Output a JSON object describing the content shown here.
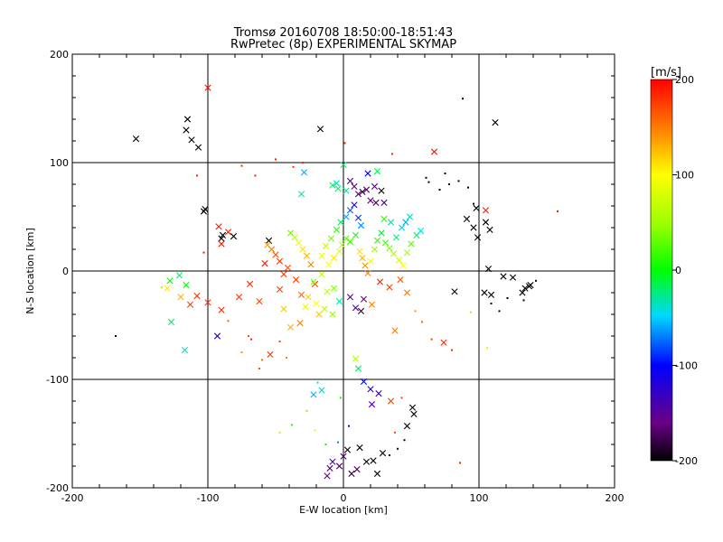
{
  "chart_data": {
    "type": "scatter",
    "title": "Tromsø 20160708 18:50:00-18:51:43",
    "subtitle": "RwPretec (8p) EXPERIMENTAL SKYMAP",
    "xlabel": "E-W location [km]",
    "ylabel": "N-S location [km]",
    "xlim": [
      -200,
      200
    ],
    "ylim": [
      -200,
      200
    ],
    "x_ticks": [
      "-200",
      "-100",
      "0",
      "100",
      "200"
    ],
    "y_ticks": [
      "-200",
      "-100",
      "0",
      "100",
      "200"
    ],
    "grid": true,
    "colorbar": {
      "label": "[m/s]",
      "range": [
        -200,
        200
      ],
      "ticks": [
        "-200",
        "-100",
        "0",
        "100",
        "200"
      ],
      "colormap": "rainbow (black→purple→blue→cyan→green→yellow→red)"
    },
    "markers": {
      "small": "dot",
      "large": "x"
    },
    "points": [
      [
        -153,
        122,
        -210,
        1
      ],
      [
        -115,
        140,
        -210,
        1
      ],
      [
        -116,
        130,
        -210,
        1
      ],
      [
        -112,
        121,
        -210,
        1
      ],
      [
        -107,
        114,
        -210,
        1
      ],
      [
        -100,
        169,
        195,
        1
      ],
      [
        -17,
        131,
        -210,
        1
      ],
      [
        112,
        137,
        -210,
        1
      ],
      [
        88,
        159,
        -200,
        0
      ],
      [
        -108,
        88,
        190,
        0
      ],
      [
        1,
        118,
        190,
        0
      ],
      [
        36,
        108,
        185,
        0
      ],
      [
        67,
        110,
        190,
        1
      ],
      [
        -75,
        97,
        190,
        0
      ],
      [
        -50,
        103,
        190,
        0
      ],
      [
        -65,
        88,
        190,
        0
      ],
      [
        -37,
        96,
        185,
        0
      ],
      [
        -30,
        100,
        185,
        0
      ],
      [
        0,
        98,
        -20,
        1
      ],
      [
        -8,
        79,
        -20,
        1
      ],
      [
        -4,
        76,
        -20,
        1
      ],
      [
        -5,
        81,
        -40,
        1
      ],
      [
        2,
        74,
        -30,
        1
      ],
      [
        5,
        83,
        -150,
        1
      ],
      [
        8,
        78,
        -160,
        1
      ],
      [
        11,
        71,
        -170,
        1
      ],
      [
        14,
        73,
        -180,
        1
      ],
      [
        17,
        75,
        -165,
        1
      ],
      [
        20,
        65,
        -160,
        1
      ],
      [
        24,
        63,
        -175,
        1
      ],
      [
        23,
        78,
        -155,
        1
      ],
      [
        28,
        74,
        -210,
        1
      ],
      [
        30,
        63,
        -140,
        1
      ],
      [
        18,
        90,
        -100,
        1
      ],
      [
        25,
        92,
        -20,
        1
      ],
      [
        -29,
        91,
        -60,
        1
      ],
      [
        -31,
        71,
        -30,
        1
      ],
      [
        61,
        86,
        -210,
        0
      ],
      [
        63,
        82,
        -210,
        0
      ],
      [
        71,
        75,
        -210,
        0
      ],
      [
        78,
        80,
        -210,
        0
      ],
      [
        75,
        90,
        -210,
        0
      ],
      [
        85,
        83,
        -210,
        0
      ],
      [
        92,
        77,
        -210,
        0
      ],
      [
        96,
        62,
        -210,
        0
      ],
      [
        98,
        58,
        -210,
        1
      ],
      [
        91,
        48,
        -210,
        1
      ],
      [
        105,
        45,
        -210,
        1
      ],
      [
        108,
        38,
        -210,
        1
      ],
      [
        96,
        40,
        -210,
        1
      ],
      [
        99,
        31,
        -210,
        1
      ],
      [
        105,
        56,
        190,
        1
      ],
      [
        107,
        2,
        -210,
        1
      ],
      [
        125,
        -6,
        -210,
        1
      ],
      [
        137,
        -14,
        -210,
        1
      ],
      [
        132,
        -20,
        -210,
        1
      ],
      [
        118,
        -5,
        -210,
        1
      ],
      [
        138,
        -13,
        -210,
        1
      ],
      [
        142,
        -9,
        -210,
        0
      ],
      [
        121,
        -25,
        -210,
        0
      ],
      [
        109,
        -30,
        -210,
        0
      ],
      [
        104,
        -20,
        -210,
        1
      ],
      [
        109,
        -22,
        -210,
        1
      ],
      [
        134,
        -16,
        -210,
        1
      ],
      [
        82,
        -19,
        -210,
        1
      ],
      [
        94,
        -38,
        120,
        0
      ],
      [
        106,
        -71,
        110,
        0
      ],
      [
        158,
        55,
        190,
        0
      ],
      [
        115,
        -37,
        -210,
        0
      ],
      [
        133,
        -27,
        -210,
        0
      ],
      [
        -102,
        57,
        -210,
        1
      ],
      [
        -103,
        55,
        -210,
        1
      ],
      [
        -90,
        30,
        -210,
        1
      ],
      [
        -89,
        33,
        -210,
        1
      ],
      [
        -81,
        32,
        -210,
        1
      ],
      [
        -55,
        28,
        -210,
        1
      ],
      [
        -92,
        41,
        190,
        1
      ],
      [
        -85,
        36,
        190,
        1
      ],
      [
        -90,
        25,
        190,
        1
      ],
      [
        -103,
        17,
        195,
        0
      ],
      [
        -121,
        -4,
        -20,
        1
      ],
      [
        -128,
        -9,
        0,
        1
      ],
      [
        -130,
        -16,
        110,
        1
      ],
      [
        -116,
        -13,
        0,
        1
      ],
      [
        -108,
        -23,
        180,
        1
      ],
      [
        -113,
        -31,
        175,
        1
      ],
      [
        -100,
        -29,
        180,
        1
      ],
      [
        -90,
        -36,
        185,
        1
      ],
      [
        -93,
        -60,
        -110,
        1
      ],
      [
        -117,
        -73,
        -40,
        1
      ],
      [
        -127,
        -47,
        -20,
        1
      ],
      [
        -168,
        -60,
        -210,
        0
      ],
      [
        -134,
        -15,
        60,
        0
      ],
      [
        -120,
        -24,
        130,
        1
      ],
      [
        -85,
        -46,
        160,
        0
      ],
      [
        -70,
        -60,
        170,
        0
      ],
      [
        -77,
        -24,
        180,
        1
      ],
      [
        -62,
        -28,
        170,
        1
      ],
      [
        -69,
        -12,
        185,
        1
      ],
      [
        -58,
        7,
        190,
        1
      ],
      [
        -47,
        -17,
        175,
        1
      ],
      [
        -44,
        -35,
        120,
        1
      ],
      [
        -39,
        -52,
        130,
        1
      ],
      [
        -32,
        -48,
        150,
        1
      ],
      [
        -28,
        -33,
        90,
        1
      ],
      [
        -21,
        -12,
        180,
        1
      ],
      [
        -18,
        -40,
        120,
        1
      ],
      [
        -12,
        -19,
        70,
        1
      ],
      [
        -7,
        -16,
        40,
        1
      ],
      [
        -3,
        -28,
        -30,
        1
      ],
      [
        5,
        -24,
        -150,
        1
      ],
      [
        9,
        -34,
        -140,
        1
      ],
      [
        13,
        -37,
        -180,
        1
      ],
      [
        15,
        -26,
        -160,
        1
      ],
      [
        21,
        -31,
        150,
        1
      ],
      [
        27,
        -10,
        180,
        1
      ],
      [
        34,
        -15,
        170,
        1
      ],
      [
        42,
        -8,
        165,
        1
      ],
      [
        47,
        -20,
        150,
        1
      ],
      [
        53,
        -37,
        140,
        0
      ],
      [
        38,
        -55,
        150,
        1
      ],
      [
        58,
        -47,
        160,
        0
      ],
      [
        65,
        -63,
        175,
        0
      ],
      [
        74,
        -66,
        185,
        1
      ],
      [
        80,
        -73,
        190,
        0
      ],
      [
        -42,
        -80,
        150,
        0
      ],
      [
        -47,
        -65,
        170,
        0
      ],
      [
        -54,
        -77,
        175,
        1
      ],
      [
        -60,
        -82,
        160,
        0
      ],
      [
        -68,
        -63,
        190,
        0
      ],
      [
        -75,
        -75,
        140,
        0
      ],
      [
        -62,
        -90,
        170,
        0
      ],
      [
        9,
        -81,
        60,
        1
      ],
      [
        11,
        -90,
        -20,
        1
      ],
      [
        15,
        -102,
        -100,
        1
      ],
      [
        20,
        -109,
        -120,
        1
      ],
      [
        26,
        -113,
        -130,
        1
      ],
      [
        21,
        -123,
        -140,
        1
      ],
      [
        35,
        -120,
        170,
        1
      ],
      [
        43,
        -117,
        175,
        0
      ],
      [
        51,
        -126,
        -210,
        1
      ],
      [
        47,
        -143,
        -210,
        1
      ],
      [
        52,
        -132,
        -210,
        1
      ],
      [
        38,
        -149,
        170,
        0
      ],
      [
        45,
        -156,
        -210,
        0
      ],
      [
        40,
        -164,
        -210,
        0
      ],
      [
        34,
        -170,
        -210,
        0
      ],
      [
        29,
        -168,
        -210,
        1
      ],
      [
        22,
        -175,
        -210,
        1
      ],
      [
        25,
        -187,
        -210,
        1
      ],
      [
        17,
        -176,
        -210,
        1
      ],
      [
        12,
        -163,
        -210,
        1
      ],
      [
        10,
        -183,
        -170,
        1
      ],
      [
        6,
        -187,
        -180,
        1
      ],
      [
        0,
        -171,
        -170,
        1
      ],
      [
        3,
        -165,
        -190,
        1
      ],
      [
        -3,
        -180,
        -170,
        1
      ],
      [
        -10,
        -182,
        -165,
        1
      ],
      [
        -12,
        -189,
        -160,
        1
      ],
      [
        -8,
        -176,
        -150,
        1
      ],
      [
        -22,
        -114,
        -60,
        1
      ],
      [
        -16,
        -110,
        -40,
        1
      ],
      [
        -27,
        -129,
        40,
        0
      ],
      [
        -38,
        -142,
        10,
        0
      ],
      [
        -47,
        -149,
        60,
        0
      ],
      [
        -21,
        -147,
        80,
        0
      ],
      [
        -13,
        -160,
        0,
        0
      ],
      [
        -4,
        -158,
        -70,
        0
      ],
      [
        86,
        -177,
        190,
        0
      ],
      [
        4,
        -143,
        -100,
        0
      ],
      [
        -19,
        -103,
        -50,
        0
      ],
      [
        -2,
        -117,
        10,
        0
      ],
      [
        -22,
        -10,
        40,
        1
      ],
      [
        -16,
        -3,
        70,
        1
      ],
      [
        -11,
        6,
        100,
        1
      ],
      [
        -7,
        12,
        110,
        1
      ],
      [
        -3,
        18,
        80,
        1
      ],
      [
        -1,
        24,
        60,
        1
      ],
      [
        2,
        30,
        30,
        1
      ],
      [
        5,
        27,
        20,
        1
      ],
      [
        9,
        33,
        10,
        1
      ],
      [
        12,
        18,
        110,
        1
      ],
      [
        14,
        12,
        130,
        1
      ],
      [
        16,
        5,
        140,
        1
      ],
      [
        18,
        -2,
        150,
        1
      ],
      [
        20,
        9,
        90,
        1
      ],
      [
        23,
        20,
        50,
        1
      ],
      [
        25,
        28,
        20,
        1
      ],
      [
        28,
        35,
        -10,
        1
      ],
      [
        31,
        26,
        20,
        1
      ],
      [
        34,
        21,
        40,
        1
      ],
      [
        37,
        16,
        60,
        1
      ],
      [
        41,
        10,
        80,
        1
      ],
      [
        44,
        5,
        100,
        1
      ],
      [
        47,
        17,
        60,
        1
      ],
      [
        50,
        25,
        30,
        1
      ],
      [
        54,
        33,
        -20,
        1
      ],
      [
        57,
        37,
        -40,
        1
      ],
      [
        39,
        31,
        -20,
        1
      ],
      [
        43,
        40,
        -50,
        1
      ],
      [
        46,
        45,
        -60,
        1
      ],
      [
        49,
        50,
        -40,
        1
      ],
      [
        35,
        45,
        -30,
        1
      ],
      [
        30,
        48,
        10,
        1
      ],
      [
        -24,
        6,
        150,
        1
      ],
      [
        -27,
        14,
        130,
        1
      ],
      [
        -30,
        20,
        110,
        1
      ],
      [
        -33,
        26,
        90,
        1
      ],
      [
        -36,
        31,
        70,
        1
      ],
      [
        -39,
        35,
        40,
        1
      ],
      [
        -41,
        3,
        170,
        1
      ],
      [
        -44,
        -3,
        175,
        1
      ],
      [
        -47,
        9,
        180,
        1
      ],
      [
        -50,
        15,
        165,
        1
      ],
      [
        -53,
        20,
        150,
        1
      ],
      [
        -56,
        24,
        140,
        1
      ],
      [
        -16,
        14,
        90,
        1
      ],
      [
        -13,
        23,
        70,
        1
      ],
      [
        -9,
        30,
        40,
        1
      ],
      [
        -5,
        38,
        10,
        1
      ],
      [
        -2,
        45,
        -20,
        1
      ],
      [
        2,
        50,
        -60,
        1
      ],
      [
        5,
        56,
        -80,
        1
      ],
      [
        8,
        61,
        -110,
        1
      ],
      [
        11,
        49,
        -90,
        1
      ],
      [
        13,
        42,
        -70,
        1
      ],
      [
        -31,
        -22,
        160,
        1
      ],
      [
        -35,
        -8,
        175,
        1
      ],
      [
        -26,
        -24,
        120,
        1
      ],
      [
        -20,
        -30,
        100,
        1
      ],
      [
        -14,
        -35,
        70,
        1
      ],
      [
        -8,
        -40,
        50,
        1
      ]
    ]
  }
}
